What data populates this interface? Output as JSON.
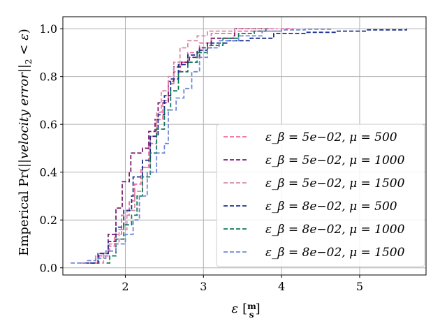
{
  "chart_data": {
    "type": "line",
    "xlabel": "ε [m/s]",
    "ylabel": "Emperical Pr(||velocity error||₂ < ε)",
    "xlim": [
      1.2,
      5.85
    ],
    "ylim": [
      -0.03,
      1.05
    ],
    "xticks": [
      2,
      3,
      4,
      5
    ],
    "yticks": [
      0.0,
      0.2,
      0.4,
      0.6,
      0.8,
      1.0
    ],
    "grid": true,
    "legend_position": "lower right",
    "line_style": "dashed",
    "series": [
      {
        "name": "ε_β = 5e−02, μ = 500",
        "color": "#ee6b9e",
        "x": [
          1.42,
          1.62,
          1.78,
          1.86,
          1.95,
          2.05,
          2.12,
          2.2,
          2.3,
          2.4,
          2.48,
          2.55,
          2.62,
          2.7,
          2.8,
          2.95,
          3.1,
          3.4,
          3.8,
          4.0,
          4.15
        ],
        "y": [
          0.02,
          0.05,
          0.09,
          0.14,
          0.22,
          0.28,
          0.35,
          0.42,
          0.52,
          0.62,
          0.7,
          0.77,
          0.82,
          0.86,
          0.9,
          0.94,
          0.98,
          0.99,
          0.99,
          1.0,
          1.0
        ]
      },
      {
        "name": "ε_β = 5e−02, μ = 1000",
        "color": "#7b1a6e",
        "x": [
          1.55,
          1.66,
          1.78,
          1.88,
          1.96,
          2.05,
          2.07,
          2.22,
          2.3,
          2.38,
          2.42,
          2.55,
          2.62,
          2.72,
          2.82,
          2.95,
          3.1,
          3.38,
          3.4,
          3.62,
          3.85
        ],
        "y": [
          0.02,
          0.06,
          0.14,
          0.25,
          0.36,
          0.4,
          0.48,
          0.5,
          0.57,
          0.62,
          0.69,
          0.78,
          0.84,
          0.86,
          0.88,
          0.92,
          0.96,
          0.97,
          1.0,
          1.0,
          1.0
        ]
      },
      {
        "name": "ε_β = 5e−02, μ = 1500",
        "color": "#d98aa8",
        "x": [
          1.62,
          1.72,
          1.8,
          1.92,
          2.02,
          2.12,
          2.22,
          2.32,
          2.4,
          2.46,
          2.55,
          2.62,
          2.7,
          2.8,
          2.92,
          3.05,
          3.2,
          3.4,
          3.7,
          3.95
        ],
        "y": [
          0.02,
          0.06,
          0.1,
          0.16,
          0.24,
          0.32,
          0.42,
          0.55,
          0.65,
          0.74,
          0.8,
          0.86,
          0.92,
          0.95,
          0.97,
          0.99,
          0.99,
          1.0,
          1.0,
          1.0
        ]
      },
      {
        "name": "ε_β = 8e−02, μ = 500",
        "color": "#1c2f8c",
        "x": [
          1.48,
          1.65,
          1.78,
          1.88,
          1.98,
          2.08,
          2.1,
          2.22,
          2.32,
          2.42,
          2.5,
          2.58,
          2.68,
          2.8,
          2.92,
          3.05,
          3.3,
          3.6,
          3.9,
          4.3,
          4.7,
          5.1,
          5.6
        ],
        "y": [
          0.02,
          0.06,
          0.11,
          0.17,
          0.24,
          0.3,
          0.38,
          0.45,
          0.55,
          0.64,
          0.72,
          0.79,
          0.85,
          0.89,
          0.91,
          0.94,
          0.95,
          0.96,
          0.98,
          0.985,
          0.99,
          0.995,
          1.0
        ]
      },
      {
        "name": "ε_β = 8e−02, μ = 1000",
        "color": "#0f7a55",
        "x": [
          1.76,
          1.8,
          1.88,
          1.98,
          2.08,
          2.15,
          2.22,
          2.32,
          2.4,
          2.5,
          2.58,
          2.68,
          2.8,
          2.92,
          3.05,
          3.25,
          3.45,
          3.65,
          3.8
        ],
        "y": [
          0.02,
          0.05,
          0.12,
          0.18,
          0.22,
          0.3,
          0.38,
          0.48,
          0.58,
          0.66,
          0.74,
          0.82,
          0.86,
          0.9,
          0.93,
          0.96,
          0.98,
          0.99,
          1.0
        ]
      },
      {
        "name": "ε_β = 8e−02, μ = 1500",
        "color": "#6f87d8",
        "x": [
          1.3,
          1.5,
          1.62,
          1.75,
          1.88,
          2.0,
          2.1,
          2.18,
          2.28,
          2.4,
          2.5,
          2.55,
          2.65,
          2.75,
          2.85,
          2.95,
          3.05,
          3.2,
          3.45,
          3.75,
          4.0,
          4.3,
          4.65
        ],
        "y": [
          0.02,
          0.03,
          0.04,
          0.07,
          0.1,
          0.14,
          0.2,
          0.3,
          0.4,
          0.48,
          0.52,
          0.66,
          0.71,
          0.75,
          0.82,
          0.88,
          0.92,
          0.95,
          0.97,
          0.99,
          0.995,
          0.998,
          1.0
        ]
      }
    ]
  }
}
